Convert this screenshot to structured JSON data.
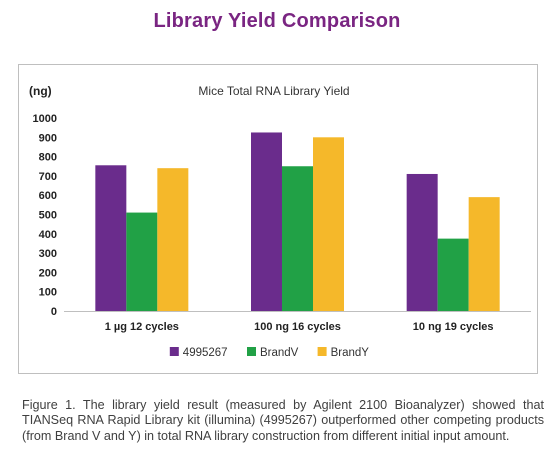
{
  "page_title": "Library Yield Comparison",
  "caption": "Figure 1. The library yield result (measured by Agilent 2100 Bioanalyzer) showed that TIANSeq RNA Rapid Library kit (illumina) (4995267) outperformed other competing products (from Brand V and Y) in total RNA library construction from different initial input amount.",
  "colors": {
    "title": "#7a2582",
    "series": [
      "#6a2c8c",
      "#21a146",
      "#f5b82a"
    ]
  },
  "chart_data": {
    "type": "bar",
    "title": "Mice Total RNA Library Yield",
    "unit_label": "(ng)",
    "xlabel": "",
    "ylabel": "",
    "ylim": [
      0,
      1000
    ],
    "yticks": [
      0,
      100,
      200,
      300,
      400,
      500,
      600,
      700,
      800,
      900,
      1000
    ],
    "grid": false,
    "legend_position": "bottom",
    "categories": [
      "1 µg 12 cycles",
      "100 ng 16 cycles",
      "10 ng 19 cycles"
    ],
    "series": [
      {
        "name": "4995267",
        "values": [
          755,
          925,
          710
        ]
      },
      {
        "name": "BrandV",
        "values": [
          510,
          750,
          375
        ]
      },
      {
        "name": "BrandY",
        "values": [
          740,
          900,
          590
        ]
      }
    ]
  }
}
